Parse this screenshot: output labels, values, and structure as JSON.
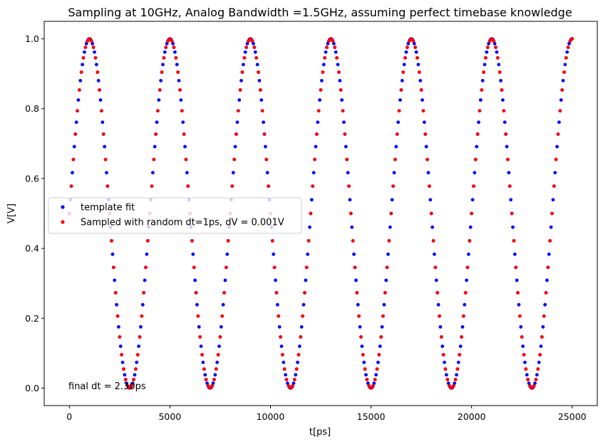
{
  "chart_data": {
    "type": "scatter",
    "title": "Sampling at 10GHz, Analog Bandwidth =1.5GHz, assuming perfect timebase knowledge",
    "xlabel": "t[ps]",
    "ylabel": "V[V]",
    "xlim": [
      -1250,
      26250
    ],
    "ylim": [
      -0.05,
      1.05
    ],
    "xticks": [
      0,
      5000,
      10000,
      15000,
      20000,
      25000
    ],
    "xtick_labels": [
      "0",
      "5000",
      "10000",
      "15000",
      "20000",
      "25000"
    ],
    "yticks": [
      0.0,
      0.2,
      0.4,
      0.6,
      0.8,
      1.0
    ],
    "ytick_labels": [
      "0.0",
      "0.2",
      "0.4",
      "0.6",
      "0.8",
      "1.0"
    ],
    "grid": false,
    "legend": "center-left",
    "waveform": {
      "function": "0.5 + 0.5*sin(2*pi*t/4000)",
      "period_ps": 4000,
      "t_start": 0,
      "t_end": 25000,
      "offset": 0.5,
      "amplitude": 0.5
    },
    "series": [
      {
        "name": "template fit",
        "color": "#0000ff",
        "sample_step_ps": 50
      },
      {
        "name": "Sampled with random dt=1ps, dV = 0.001V",
        "color": "#ff0000",
        "sample_step_ps": 100
      }
    ],
    "annotation": {
      "text": "final dt = 2.30ps",
      "x": 0,
      "y": 0.0
    }
  }
}
